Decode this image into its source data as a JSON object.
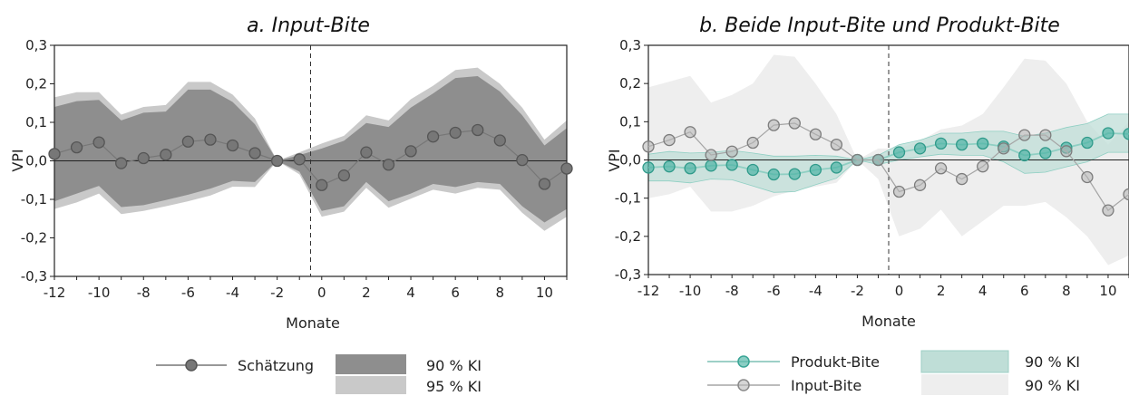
{
  "chart_data": [
    {
      "type": "line",
      "title": "a.    Input-Bite",
      "xlabel": "Monate",
      "ylabel": "VPI",
      "xlim": [
        -12,
        11
      ],
      "ylim": [
        -0.3,
        0.3
      ],
      "xticks": [
        -12,
        -10,
        -8,
        -6,
        -4,
        -2,
        0,
        2,
        4,
        6,
        8,
        10
      ],
      "yticks": [
        "-0,3",
        "-0,2",
        "-0,1",
        "0,0",
        "0,1",
        "0,2",
        "0,3"
      ],
      "event_line_x": -0.5,
      "x": [
        -12,
        -11,
        -10,
        -9,
        -8,
        -7,
        -6,
        -5,
        -4,
        -3,
        -2,
        -1,
        0,
        1,
        2,
        3,
        4,
        5,
        6,
        7,
        8,
        9,
        10,
        11
      ],
      "series": [
        {
          "name": "Schätzung",
          "values": [
            0.018,
            0.035,
            0.048,
            -0.006,
            0.007,
            0.016,
            0.05,
            0.055,
            0.04,
            0.02,
            0.0,
            0.004,
            -0.063,
            -0.038,
            0.022,
            -0.01,
            0.025,
            0.063,
            0.073,
            0.08,
            0.053,
            0.002,
            -0.06,
            -0.02
          ],
          "color": "#777777"
        }
      ],
      "bands": [
        {
          "name": "95 % KI",
          "color": "#c9c9c9",
          "upper": [
            0.165,
            0.178,
            0.178,
            0.12,
            0.14,
            0.145,
            0.205,
            0.205,
            0.172,
            0.11,
            0.0,
            0.022,
            0.045,
            0.065,
            0.118,
            0.105,
            0.16,
            0.195,
            0.236,
            0.242,
            0.2,
            0.138,
            0.055,
            0.105
          ],
          "lower": [
            -0.125,
            -0.108,
            -0.085,
            -0.138,
            -0.13,
            -0.118,
            -0.105,
            -0.09,
            -0.067,
            -0.068,
            0.0,
            -0.035,
            -0.145,
            -0.132,
            -0.07,
            -0.122,
            -0.098,
            -0.075,
            -0.085,
            -0.07,
            -0.075,
            -0.135,
            -0.182,
            -0.145
          ]
        },
        {
          "name": "90 % KI",
          "color": "#8e8e8e",
          "upper": [
            0.14,
            0.155,
            0.158,
            0.105,
            0.125,
            0.128,
            0.185,
            0.185,
            0.153,
            0.095,
            0.0,
            0.015,
            0.032,
            0.052,
            0.098,
            0.088,
            0.138,
            0.175,
            0.215,
            0.22,
            0.18,
            0.118,
            0.04,
            0.085
          ],
          "lower": [
            -0.105,
            -0.085,
            -0.065,
            -0.12,
            -0.115,
            -0.102,
            -0.088,
            -0.072,
            -0.052,
            -0.055,
            0.0,
            -0.028,
            -0.13,
            -0.118,
            -0.055,
            -0.105,
            -0.085,
            -0.06,
            -0.068,
            -0.055,
            -0.06,
            -0.118,
            -0.16,
            -0.125
          ]
        }
      ],
      "legend": [
        {
          "label": "Schätzung"
        },
        {
          "label": "90 % KI"
        },
        {
          "label": "95 % KI"
        }
      ]
    },
    {
      "type": "line",
      "title": "b.    Beide Input-Bite und Produkt-Bite",
      "xlabel": "Monate",
      "ylabel": "VPI",
      "xlim": [
        -12,
        11
      ],
      "ylim": [
        -0.3,
        0.3
      ],
      "xticks": [
        -12,
        -10,
        -8,
        -6,
        -4,
        -2,
        0,
        2,
        4,
        6,
        8,
        10
      ],
      "yticks": [
        "-0,3",
        "-0,2",
        "-0,1",
        "0,0",
        "0,1",
        "0,2",
        "0,3"
      ],
      "event_line_x": -0.5,
      "x": [
        -12,
        -11,
        -10,
        -9,
        -8,
        -7,
        -6,
        -5,
        -4,
        -3,
        -2,
        -1,
        0,
        1,
        2,
        3,
        4,
        5,
        6,
        7,
        8,
        9,
        10,
        11
      ],
      "series": [
        {
          "name": "Produkt-Bite",
          "values": [
            -0.02,
            -0.017,
            -0.022,
            -0.015,
            -0.013,
            -0.026,
            -0.038,
            -0.037,
            -0.026,
            -0.02,
            0.0,
            0.0,
            0.02,
            0.03,
            0.043,
            0.04,
            0.043,
            0.035,
            0.012,
            0.018,
            0.032,
            0.045,
            0.07,
            0.068
          ],
          "color": "#3aa596"
        },
        {
          "name": "Input-Bite",
          "values": [
            0.035,
            0.052,
            0.073,
            0.013,
            0.022,
            0.045,
            0.091,
            0.096,
            0.067,
            0.04,
            0.0,
            0.0,
            -0.083,
            -0.066,
            -0.022,
            -0.05,
            -0.017,
            0.03,
            0.065,
            0.065,
            0.023,
            -0.045,
            -0.132,
            -0.09
          ],
          "color": "#8a8a8a"
        }
      ],
      "bands": [
        {
          "name": "90 % KI",
          "series": "Input-Bite",
          "color": "#eeeeee",
          "upper": [
            0.19,
            0.205,
            0.22,
            0.15,
            0.17,
            0.2,
            0.275,
            0.27,
            0.2,
            0.12,
            0.0,
            0.03,
            0.03,
            0.05,
            0.08,
            0.09,
            0.12,
            0.19,
            0.265,
            0.26,
            0.2,
            0.1,
            0.04,
            0.1
          ],
          "lower": [
            -0.1,
            -0.09,
            -0.07,
            -0.135,
            -0.135,
            -0.12,
            -0.095,
            -0.08,
            -0.07,
            -0.06,
            0.0,
            -0.05,
            -0.2,
            -0.18,
            -0.13,
            -0.2,
            -0.16,
            -0.12,
            -0.12,
            -0.11,
            -0.15,
            -0.2,
            -0.275,
            -0.25
          ]
        },
        {
          "name": "90 % KI",
          "series": "Produkt-Bite",
          "color": "#bfded7",
          "upper": [
            0.015,
            0.022,
            0.018,
            0.02,
            0.025,
            0.018,
            0.01,
            0.01,
            0.012,
            0.01,
            0.0,
            0.012,
            0.04,
            0.052,
            0.07,
            0.07,
            0.075,
            0.075,
            0.062,
            0.07,
            0.085,
            0.095,
            0.12,
            0.12
          ],
          "lower": [
            -0.055,
            -0.055,
            -0.06,
            -0.05,
            -0.052,
            -0.068,
            -0.085,
            -0.083,
            -0.065,
            -0.048,
            0.0,
            -0.012,
            0.0,
            0.008,
            0.015,
            0.012,
            0.012,
            -0.005,
            -0.035,
            -0.032,
            -0.018,
            -0.005,
            0.02,
            0.02
          ]
        }
      ],
      "legend": [
        {
          "label": "Produkt-Bite"
        },
        {
          "label": "90 % KI"
        },
        {
          "label": "Input-Bite"
        },
        {
          "label": "90 % KI"
        }
      ]
    }
  ]
}
